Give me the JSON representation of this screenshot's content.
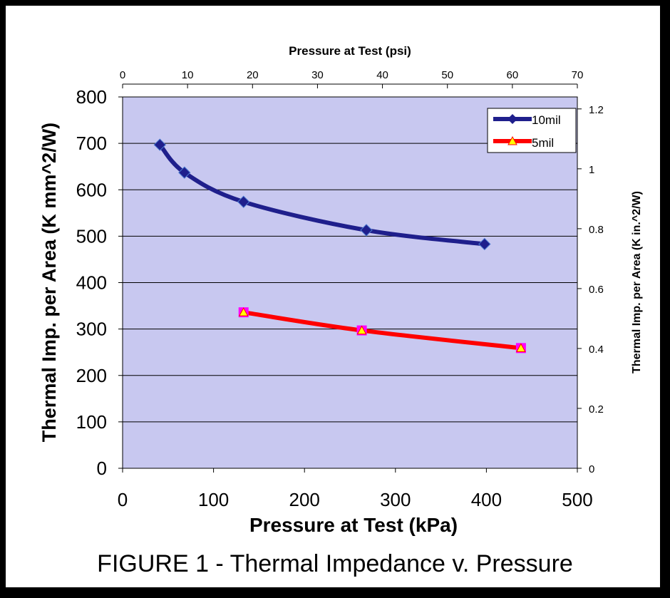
{
  "caption": "FIGURE 1 - Thermal Impedance v. Pressure",
  "chart_data": {
    "type": "line",
    "title": "",
    "xlabel": "Pressure at Test (kPa)",
    "x2label": "Pressure at Test (psi)",
    "ylabel": "Thermal Imp. per Area (K mm^2/W)",
    "y2label": "Thermal Imp. per Area (K in.^2/W)",
    "xlim": [
      0,
      500
    ],
    "x2lim": [
      0,
      70
    ],
    "ylim": [
      0,
      800
    ],
    "y2lim": [
      0,
      1.24
    ],
    "xticks": [
      0,
      100,
      200,
      300,
      400,
      500
    ],
    "x2ticks": [
      0,
      10,
      20,
      30,
      40,
      50,
      60,
      70
    ],
    "yticks": [
      0,
      100,
      200,
      300,
      400,
      500,
      600,
      700,
      800
    ],
    "y2ticks": [
      0,
      0.2,
      0.4,
      0.6,
      0.8,
      1,
      1.2
    ],
    "grid": true,
    "legend_position": "top-right",
    "colors": {
      "plot_bg": "#c8c8f0",
      "series_10mil": "#1f1f8c",
      "series_5mil": "#ff0000",
      "marker_5mil_fill": "#ffff00",
      "marker_5mil_edge": "#ff00ff"
    },
    "series": [
      {
        "name": "10mil",
        "x": [
          41,
          68,
          133,
          268,
          398
        ],
        "y": [
          697,
          637,
          574,
          513,
          483
        ],
        "marker": "diamond"
      },
      {
        "name": "5mil",
        "x": [
          133,
          263,
          438
        ],
        "y": [
          336,
          297,
          259
        ],
        "marker": "triangle"
      }
    ]
  }
}
